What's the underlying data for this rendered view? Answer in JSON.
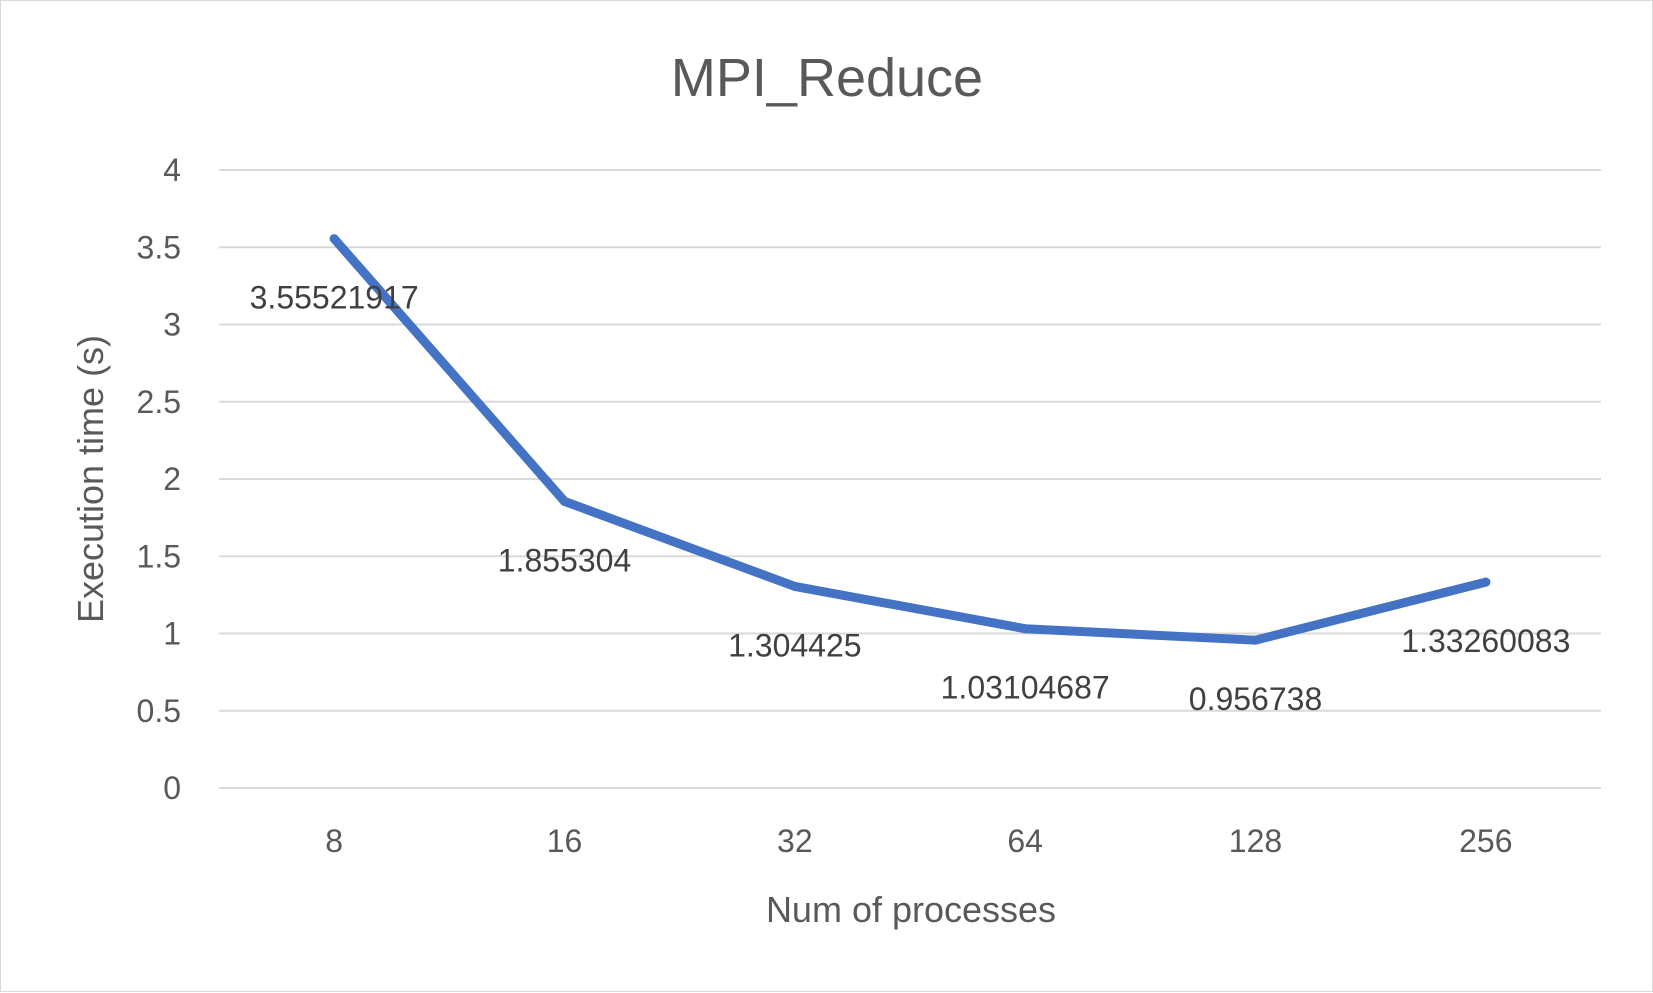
{
  "chart_data": {
    "type": "line",
    "title": "MPI_Reduce",
    "xlabel": "Num of processes",
    "ylabel": "Execution time (s)",
    "categories": [
      "8",
      "16",
      "32",
      "64",
      "128",
      "256"
    ],
    "series": [
      {
        "values": [
          3.55521917,
          1.855304,
          1.304425,
          1.03104687,
          0.956738,
          1.33260083
        ],
        "data_labels": [
          "3.55521917",
          "1.855304",
          "1.304425",
          "1.03104687",
          "0.956738",
          "1.33260083"
        ],
        "color": "#4472c4"
      }
    ],
    "ylim": [
      0,
      4
    ],
    "yticks": [
      "0",
      "0.5",
      "1",
      "1.5",
      "2",
      "2.5",
      "3",
      "3.5",
      "4"
    ],
    "grid": true,
    "legend": "none"
  }
}
